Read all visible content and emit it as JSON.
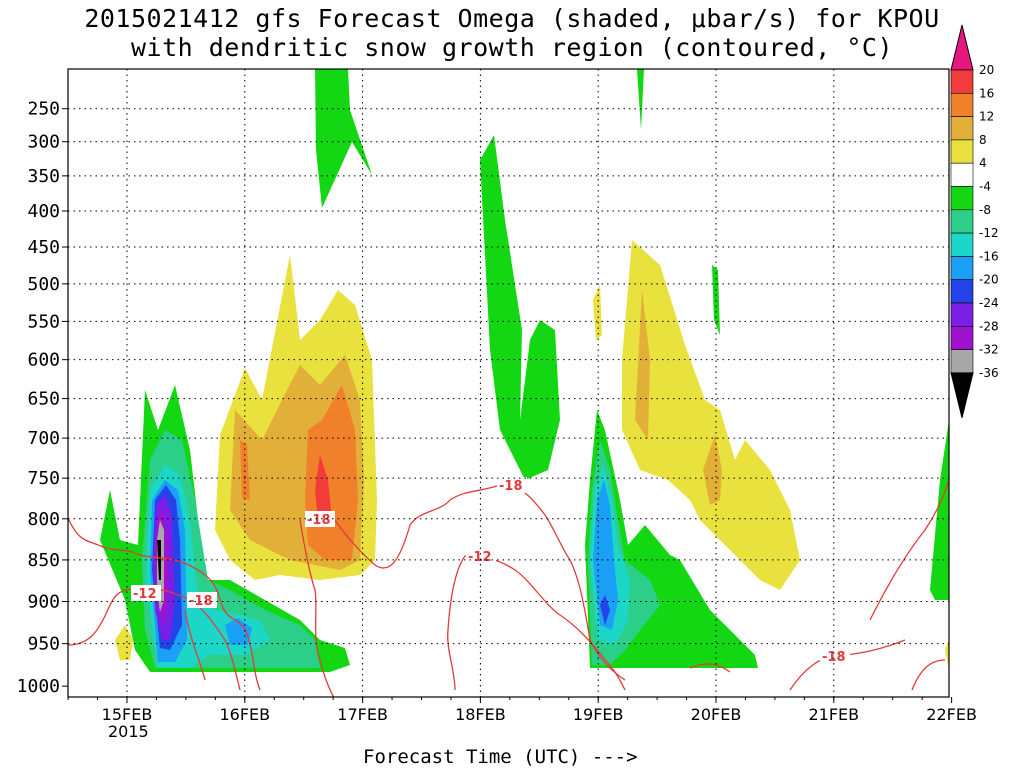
{
  "title_line1": "2015021412 gfs Forecast Omega (shaded, μbar/s) for KPOU",
  "title_line2": "with dendritic snow growth region (contoured, °C)",
  "xlabel": "Forecast Time (UTC) --->",
  "year_label": "2015",
  "chart_data": {
    "type": "heatmap",
    "title": "2015021412 gfs Forecast Omega (shaded, μbar/s) for KPOU",
    "subtitle": "with dendritic snow growth region (contoured, °C)",
    "xlabel": "Forecast Time (UTC) --->",
    "ylabel": "",
    "x_ticks": [
      "15FEB",
      "16FEB",
      "17FEB",
      "18FEB",
      "19FEB",
      "20FEB",
      "21FEB",
      "22FEB"
    ],
    "x_range": [
      "2015-02-14 12Z",
      "2015-02-22 00Z"
    ],
    "y_ticks": [
      250,
      300,
      350,
      400,
      450,
      500,
      550,
      600,
      650,
      700,
      750,
      800,
      850,
      900,
      950,
      1000
    ],
    "y_range": [
      200,
      1000
    ],
    "y_axis": "pressure (hPa), inverted",
    "grid": true,
    "colorbar": {
      "levels": [
        20,
        16,
        12,
        8,
        4,
        -4,
        -8,
        -12,
        -16,
        -20,
        -24,
        -28,
        -32,
        -36
      ],
      "colors": [
        "#e8177d",
        "#f23b3b",
        "#f0802a",
        "#e2b038",
        "#e9e13d",
        "#ffffff",
        "#13d713",
        "#2ccf8a",
        "#1cd7c8",
        "#1ba0f7",
        "#2244e8",
        "#7a1fe6",
        "#a012d0",
        "#a8a8a8",
        "#000000"
      ]
    },
    "contours": [
      {
        "level": -12,
        "label": "-12"
      },
      {
        "level": -18,
        "label": "-18"
      }
    ]
  }
}
